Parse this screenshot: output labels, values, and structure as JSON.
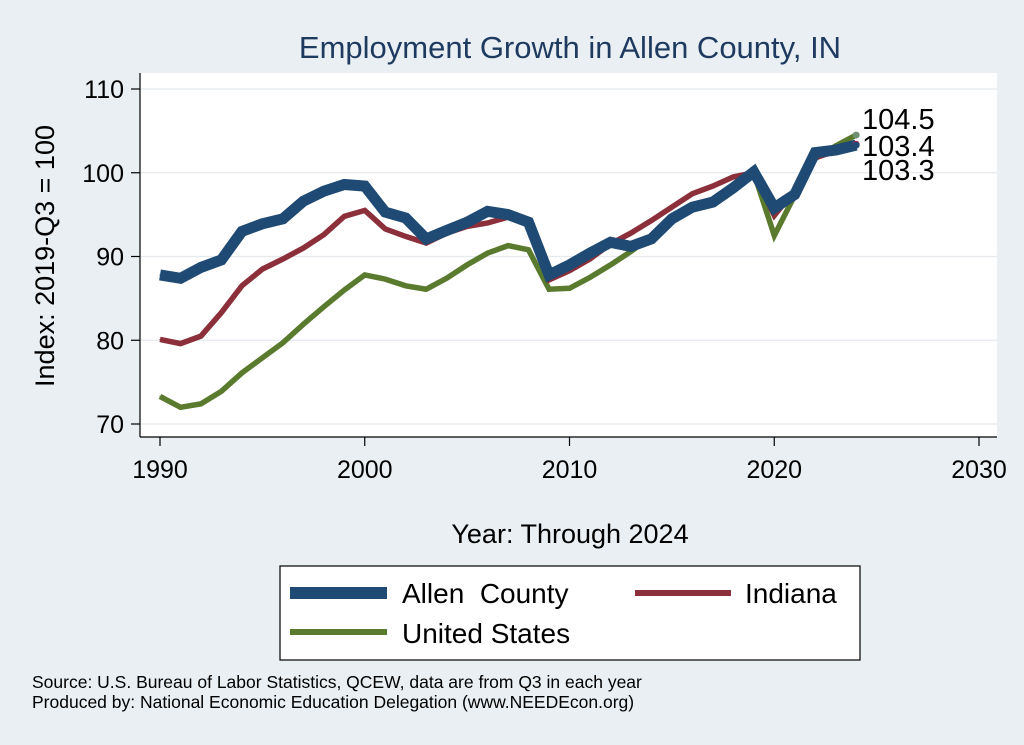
{
  "chart_data": {
    "type": "line",
    "title": "Employment Growth in Allen County, IN",
    "xlabel": "Year: Through 2024",
    "ylabel": "Index: 2019-Q3 = 100",
    "xlim": [
      1990,
      2030
    ],
    "ylim": [
      70,
      110
    ],
    "xticks": [
      1990,
      2000,
      2010,
      2020,
      2030
    ],
    "yticks": [
      70,
      80,
      90,
      100,
      110
    ],
    "x": [
      1990,
      1991,
      1992,
      1993,
      1994,
      1995,
      1996,
      1997,
      1998,
      1999,
      2000,
      2001,
      2002,
      2003,
      2004,
      2005,
      2006,
      2007,
      2008,
      2009,
      2010,
      2011,
      2012,
      2013,
      2014,
      2015,
      2016,
      2017,
      2018,
      2019,
      2020,
      2021,
      2022,
      2023,
      2024
    ],
    "series": [
      {
        "name": "United States",
        "color": "#5a7b2e",
        "values": [
          73.3,
          72.0,
          72.4,
          73.9,
          76.1,
          77.9,
          79.7,
          81.9,
          84.0,
          86.0,
          87.8,
          87.3,
          86.5,
          86.1,
          87.4,
          89.0,
          90.4,
          91.3,
          90.8,
          86.1,
          86.2,
          87.5,
          89.0,
          90.6,
          92.4,
          94.3,
          95.8,
          96.8,
          98.5,
          100.0,
          92.5,
          97.3,
          101.7,
          103.2,
          104.5
        ],
        "end_label": "104.5"
      },
      {
        "name": "Indiana",
        "color": "#8b2f3a",
        "values": [
          80.1,
          79.6,
          80.5,
          83.3,
          86.5,
          88.5,
          89.7,
          91.0,
          92.6,
          94.8,
          95.5,
          93.3,
          92.4,
          91.6,
          92.8,
          93.6,
          94.0,
          94.7,
          93.8,
          87.2,
          88.3,
          89.7,
          91.5,
          92.8,
          94.3,
          95.9,
          97.5,
          98.4,
          99.5,
          100.0,
          94.9,
          97.9,
          101.8,
          102.6,
          103.4
        ],
        "end_label": "103.4"
      },
      {
        "name": "Allen  County",
        "color": "#1f4a73",
        "values": [
          87.8,
          87.4,
          88.7,
          89.6,
          93.0,
          93.9,
          94.5,
          96.6,
          97.8,
          98.6,
          98.4,
          95.3,
          94.6,
          92.1,
          93.1,
          94.1,
          95.4,
          95.0,
          94.1,
          87.8,
          89.0,
          90.4,
          91.7,
          91.2,
          92.1,
          94.5,
          95.9,
          96.5,
          98.2,
          100.1,
          95.8,
          97.4,
          102.4,
          102.7,
          103.3
        ],
        "end_label": "103.3"
      }
    ],
    "legend": {
      "placement": "bottom",
      "entries": [
        {
          "name": "Allen  County",
          "color": "#1f4a73"
        },
        {
          "name": "Indiana",
          "color": "#8b2f3a"
        },
        {
          "name": "United States",
          "color": "#5a7b2e"
        }
      ]
    }
  },
  "notes": {
    "source": "Source: U.S. Bureau of Labor Statistics, QCEW, data are from Q3 in each year",
    "produced_by": "Produced by: National Economic Education Delegation (www.NEEDEcon.org)"
  }
}
